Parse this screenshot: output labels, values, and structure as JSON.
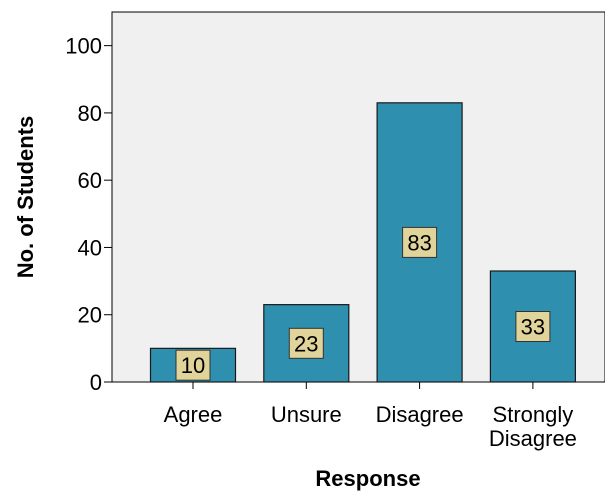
{
  "chart_data": {
    "type": "bar",
    "title": "",
    "xlabel": "Response",
    "ylabel": "No. of Students",
    "categories": [
      "Agree",
      "Unsure",
      "Disagree",
      "Strongly Disagree"
    ],
    "category_label_lines": [
      [
        "Agree"
      ],
      [
        "Unsure"
      ],
      [
        "Disagree"
      ],
      [
        "Strongly",
        "Disagree"
      ]
    ],
    "values": [
      10,
      23,
      83,
      33
    ],
    "data_labels": [
      "10",
      "23",
      "83",
      "33"
    ],
    "ylim": [
      0,
      110
    ],
    "yticks": [
      0,
      20,
      40,
      60,
      80,
      100
    ],
    "grid": false,
    "legend": "none",
    "colors": {
      "bar_fill": "#2f8fae",
      "bar_stroke": "#1a1a1a",
      "plot_background": "#f0f0f0",
      "label_box_fill": "#e0d49b",
      "label_box_stroke": "#333333"
    }
  }
}
